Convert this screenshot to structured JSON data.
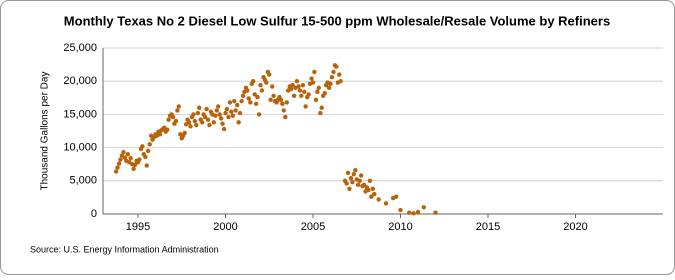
{
  "chart_data": {
    "type": "scatter",
    "title": "Monthly Texas No 2 Diesel Low Sulfur 15-500 ppm Wholesale/Resale Volume by Refiners",
    "y_label": "Thousand Gallons per Day",
    "source": "Source: U.S. Energy Information Administration",
    "xlim": [
      1993,
      2025
    ],
    "xticks": [
      1995,
      2000,
      2005,
      2010,
      2015,
      2020
    ],
    "ylim": [
      0,
      25000
    ],
    "yticks": [
      0,
      {
        "value": 5000,
        "label": "5,000"
      },
      {
        "value": 10000,
        "label": "10,000"
      },
      {
        "value": 15000,
        "label": "15,000"
      },
      {
        "value": 20000,
        "label": "20,000"
      },
      {
        "value": 25000,
        "label": "25,000"
      }
    ],
    "grid": true,
    "series": [
      {
        "name": "Volume",
        "color": "#b8620a",
        "x": [
          1993.75,
          1993.83,
          1993.92,
          1994.0,
          1994.08,
          1994.17,
          1994.25,
          1994.33,
          1994.42,
          1994.5,
          1994.58,
          1994.67,
          1994.75,
          1994.83,
          1994.92,
          1995.0,
          1995.08,
          1995.17,
          1995.25,
          1995.33,
          1995.42,
          1995.5,
          1995.58,
          1995.67,
          1995.75,
          1995.83,
          1995.92,
          1996.0,
          1996.08,
          1996.17,
          1996.25,
          1996.33,
          1996.42,
          1996.5,
          1996.58,
          1996.67,
          1996.75,
          1996.83,
          1996.92,
          1997.0,
          1997.08,
          1997.17,
          1997.25,
          1997.33,
          1997.42,
          1997.5,
          1997.58,
          1997.67,
          1997.75,
          1997.83,
          1997.92,
          1998.0,
          1998.08,
          1998.17,
          1998.25,
          1998.33,
          1998.42,
          1998.5,
          1998.58,
          1998.67,
          1998.75,
          1998.83,
          1998.92,
          1999.0,
          1999.08,
          1999.17,
          1999.25,
          1999.33,
          1999.42,
          1999.5,
          1999.58,
          1999.67,
          1999.75,
          1999.83,
          1999.92,
          2000.0,
          2000.08,
          2000.17,
          2000.25,
          2000.33,
          2000.42,
          2000.5,
          2000.58,
          2000.67,
          2000.75,
          2000.83,
          2000.92,
          2001.0,
          2001.08,
          2001.17,
          2001.25,
          2001.33,
          2001.42,
          2001.5,
          2001.58,
          2001.67,
          2001.75,
          2001.83,
          2001.92,
          2002.0,
          2002.08,
          2002.17,
          2002.25,
          2002.33,
          2002.42,
          2002.5,
          2002.58,
          2002.67,
          2002.75,
          2002.83,
          2002.92,
          2003.0,
          2003.08,
          2003.17,
          2003.25,
          2003.33,
          2003.42,
          2003.5,
          2003.58,
          2003.67,
          2003.75,
          2003.83,
          2003.92,
          2004.0,
          2004.08,
          2004.17,
          2004.25,
          2004.33,
          2004.42,
          2004.5,
          2004.58,
          2004.67,
          2004.75,
          2004.83,
          2004.92,
          2005.0,
          2005.08,
          2005.17,
          2005.25,
          2005.33,
          2005.42,
          2005.5,
          2005.58,
          2005.67,
          2005.75,
          2005.83,
          2005.92,
          2006.0,
          2006.08,
          2006.17,
          2006.25,
          2006.33,
          2006.42,
          2006.5,
          2006.58,
          2006.83,
          2006.92,
          2007.0,
          2007.08,
          2007.17,
          2007.25,
          2007.33,
          2007.42,
          2007.5,
          2007.58,
          2007.67,
          2007.75,
          2007.83,
          2007.92,
          2008.0,
          2008.08,
          2008.17,
          2008.25,
          2008.33,
          2008.42,
          2008.5,
          2008.75,
          2009.17,
          2009.58,
          2009.75,
          2010.0,
          2010.5,
          2010.75,
          2011.0,
          2011.33,
          2012.0
        ],
        "values": [
          6400,
          7000,
          7600,
          8200,
          8800,
          9300,
          8500,
          8000,
          9000,
          7800,
          8400,
          7500,
          6800,
          7400,
          8000,
          7800,
          8200,
          9800,
          10200,
          9000,
          8600,
          7300,
          9500,
          10500,
          11800,
          11200,
          11600,
          12000,
          11800,
          12400,
          12000,
          12600,
          12800,
          13000,
          12400,
          12700,
          14200,
          14800,
          15000,
          14600,
          13600,
          14000,
          15600,
          16200,
          12000,
          11400,
          11800,
          12200,
          13500,
          14200,
          13800,
          13200,
          14600,
          15000,
          14000,
          13400,
          15200,
          16000,
          14200,
          13800,
          15000,
          14600,
          15800,
          14200,
          13400,
          15400,
          15000,
          13800,
          14800,
          15600,
          16200,
          15000,
          14400,
          13600,
          12800,
          15200,
          15800,
          14600,
          16800,
          15400,
          14800,
          17000,
          15600,
          16400,
          13800,
          15200,
          17000,
          17800,
          18400,
          19000,
          18600,
          17400,
          16800,
          19600,
          20000,
          18000,
          16600,
          17600,
          15000,
          19400,
          18600,
          20600,
          20200,
          19800,
          21400,
          21000,
          17200,
          19200,
          17800,
          17000,
          16800,
          17200,
          17600,
          17200,
          16600,
          15600,
          14600,
          16800,
          18600,
          19200,
          18800,
          19400,
          17800,
          19000,
          20000,
          19200,
          18600,
          17800,
          19400,
          18400,
          16200,
          17600,
          18000,
          19600,
          20400,
          19800,
          21400,
          17200,
          18400,
          19000,
          15200,
          16000,
          17800,
          18200,
          19400,
          19800,
          19000,
          19600,
          20600,
          21400,
          22400,
          22200,
          19800,
          21000,
          20000,
          5000,
          4600,
          6200,
          3800,
          5400,
          4800,
          6000,
          6600,
          5200,
          4400,
          5000,
          5800,
          4200,
          4400,
          3400,
          4000,
          3600,
          5000,
          2600,
          3800,
          3000,
          2200,
          1600,
          2400,
          2600,
          600,
          200,
          100,
          300,
          1000,
          200
        ]
      }
    ]
  }
}
